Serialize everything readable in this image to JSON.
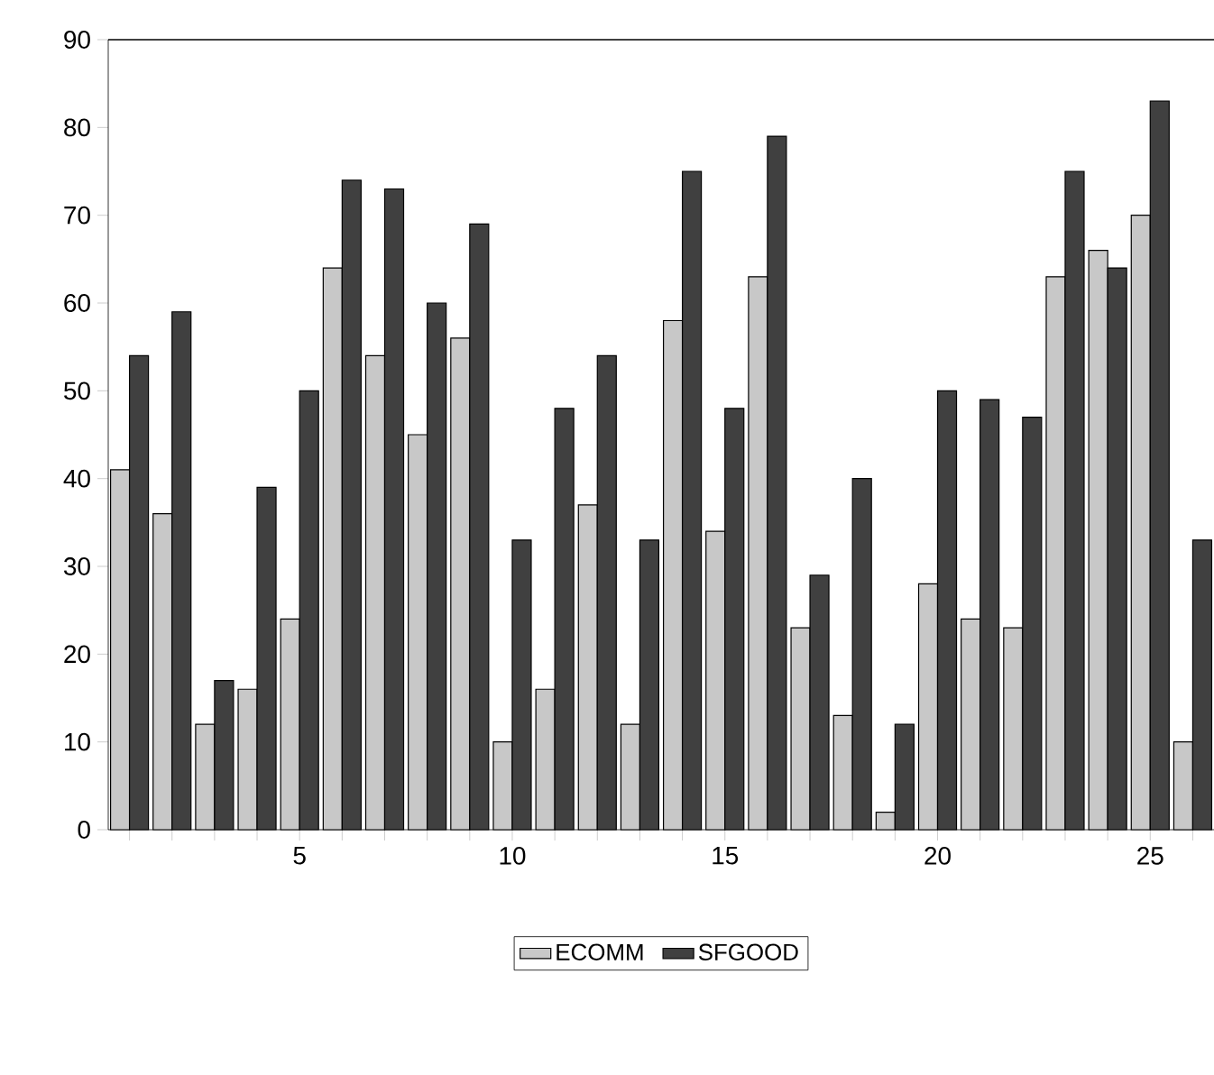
{
  "chart_data": {
    "type": "bar",
    "categories": [
      null,
      null,
      null,
      null,
      "5",
      null,
      null,
      null,
      null,
      "10",
      null,
      null,
      null,
      null,
      "15",
      null,
      null,
      null,
      null,
      "20",
      null,
      null,
      null,
      null,
      "25",
      null
    ],
    "series": [
      {
        "name": "ECOMM",
        "color": "#c8c8c8",
        "values": [
          41,
          36,
          12,
          16,
          24,
          64,
          54,
          45,
          56,
          10,
          16,
          37,
          12,
          58,
          34,
          63,
          23,
          13,
          2,
          28,
          24,
          23,
          63,
          66,
          70,
          10
        ]
      },
      {
        "name": "SFGOOD",
        "color": "#404040",
        "values": [
          54,
          59,
          17,
          39,
          50,
          74,
          73,
          60,
          69,
          33,
          48,
          54,
          33,
          75,
          48,
          79,
          29,
          40,
          12,
          50,
          49,
          47,
          75,
          64,
          83,
          33
        ]
      }
    ],
    "ylim": [
      0,
      90
    ],
    "yticks": [
      0,
      10,
      20,
      30,
      40,
      50,
      60,
      70,
      80,
      90
    ],
    "legend": "bottom"
  }
}
